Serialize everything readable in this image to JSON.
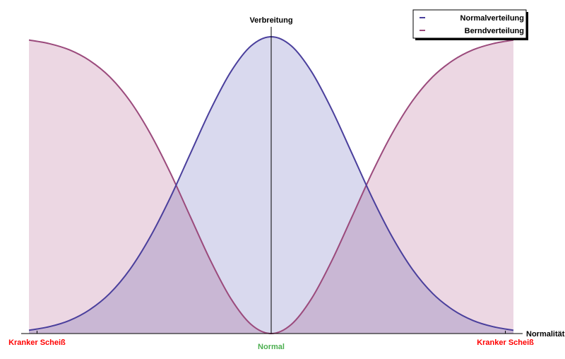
{
  "chart_data": {
    "type": "area",
    "ylabel": "Verbreitung",
    "xlabel": "Normalität",
    "xlim": [
      -3,
      3
    ],
    "ylim": [
      0,
      1
    ],
    "grid": false,
    "legend_position": "top-right",
    "x_ticks": [
      {
        "x": -2.9,
        "label": "Kranker Scheiß",
        "color": "#ff0000"
      },
      {
        "x": 0,
        "label": "Normal",
        "color": "#4caf50"
      },
      {
        "x": 2.9,
        "label": "Kranker Scheiß",
        "color": "#ff0000"
      }
    ],
    "x": [
      -3,
      -2.75,
      -2.5,
      -2.25,
      -2,
      -1.75,
      -1.5,
      -1.25,
      -1,
      -0.75,
      -0.5,
      -0.25,
      0,
      0.25,
      0.5,
      0.75,
      1,
      1.25,
      1.5,
      1.75,
      2,
      2.25,
      2.5,
      2.75,
      3
    ],
    "series": [
      {
        "name": "Normalverteilung",
        "color": "#4a3f9c",
        "fill": "#d9d9ee",
        "values": [
          0.011,
          0.023,
          0.044,
          0.08,
          0.135,
          0.216,
          0.325,
          0.458,
          0.607,
          0.755,
          0.882,
          0.969,
          1,
          0.969,
          0.882,
          0.755,
          0.607,
          0.458,
          0.325,
          0.216,
          0.135,
          0.08,
          0.044,
          0.023,
          0.011
        ]
      },
      {
        "name": "Berndverteilung",
        "color": "#9b4a7c",
        "fill": "#ecd7e3",
        "values": [
          0.989,
          0.977,
          0.956,
          0.92,
          0.865,
          0.784,
          0.675,
          0.542,
          0.393,
          0.245,
          0.118,
          0.031,
          0,
          0.031,
          0.118,
          0.245,
          0.393,
          0.542,
          0.675,
          0.784,
          0.865,
          0.92,
          0.956,
          0.977,
          0.989
        ]
      }
    ]
  }
}
